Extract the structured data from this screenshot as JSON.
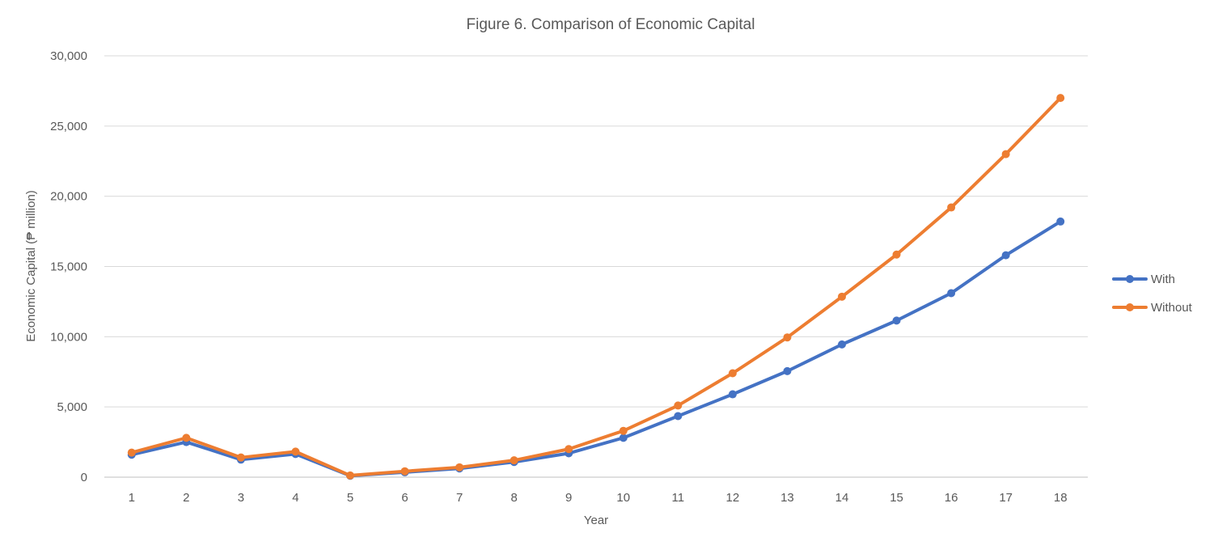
{
  "chart_data": {
    "type": "line",
    "title": "Figure 6. Comparison of Economic Capital",
    "xlabel": "Year",
    "ylabel": "Economic Capital (₱ million)",
    "categories": [
      "1",
      "2",
      "3",
      "4",
      "5",
      "6",
      "7",
      "8",
      "9",
      "10",
      "11",
      "12",
      "13",
      "14",
      "15",
      "16",
      "17",
      "18"
    ],
    "ylim": [
      0,
      30000
    ],
    "yticks": [
      "0",
      "5,000",
      "10,000",
      "15,000",
      "20,000",
      "25,000",
      "30,000"
    ],
    "grid": true,
    "legend_position": "right",
    "series": [
      {
        "name": "With",
        "color": "#4472C4",
        "values": [
          1600,
          2500,
          1250,
          1650,
          100,
          350,
          620,
          1080,
          1700,
          2800,
          4350,
          5900,
          7550,
          9450,
          11150,
          13100,
          15800,
          18200
        ]
      },
      {
        "name": "Without",
        "color": "#ED7D31",
        "values": [
          1750,
          2800,
          1400,
          1820,
          120,
          420,
          700,
          1200,
          2000,
          3300,
          5100,
          7400,
          9950,
          12850,
          15850,
          19200,
          23000,
          27000
        ]
      }
    ]
  }
}
